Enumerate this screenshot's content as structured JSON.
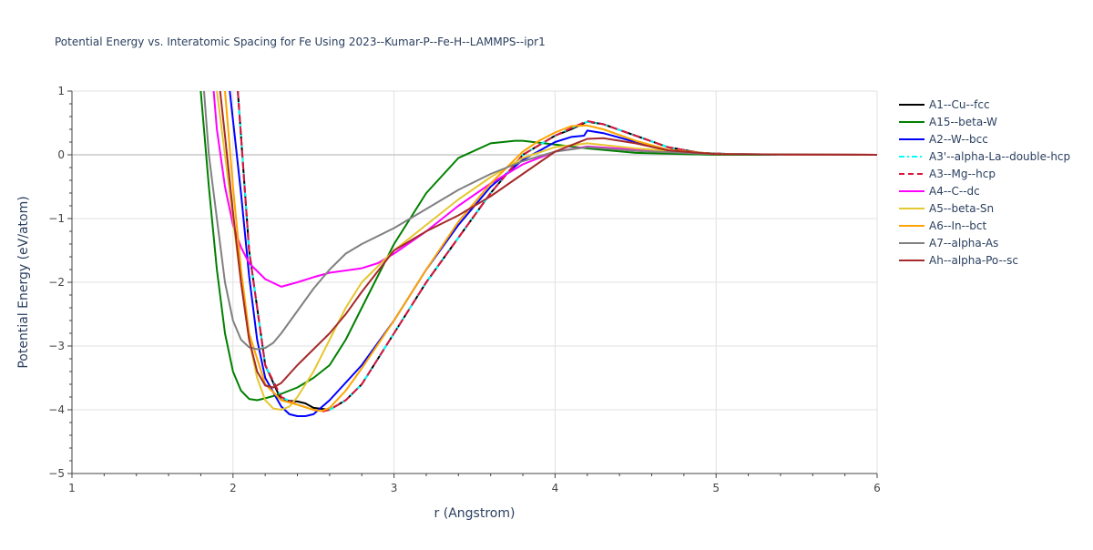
{
  "chart_data": {
    "type": "line",
    "title": "Potential Energy vs. Interatomic Spacing for Fe Using 2023--Kumar-P--Fe-H--LAMMPS--ipr1",
    "xlabel": "r (Angstrom)",
    "ylabel": "Potential Energy (eV/atom)",
    "xlim": [
      1,
      6
    ],
    "ylim": [
      -5,
      1
    ],
    "x_ticks": [
      1,
      2,
      3,
      4,
      5,
      6
    ],
    "x_tick_labels": [
      "1",
      "2",
      "3",
      "4",
      "5",
      "6"
    ],
    "y_ticks": [
      -5,
      -4,
      -3,
      -2,
      -1,
      0,
      1
    ],
    "y_tick_labels": [
      "−5",
      "−4",
      "−3",
      "−2",
      "−1",
      "0",
      "1"
    ],
    "grid": true,
    "legend_position": "right",
    "series": [
      {
        "name": "A1--Cu--fcc",
        "color": "#000000",
        "dash": "solid",
        "x": [
          2.03,
          2.1,
          2.2,
          2.3,
          2.4,
          2.45,
          2.5,
          2.6,
          2.7,
          2.8,
          3.0,
          3.2,
          3.4,
          3.6,
          3.8,
          4.0,
          4.1,
          4.2,
          4.3,
          4.5,
          4.7,
          4.9,
          5.1,
          5.5,
          6.0
        ],
        "y": [
          1.0,
          -1.5,
          -3.3,
          -3.85,
          -3.87,
          -3.9,
          -3.97,
          -4.0,
          -3.85,
          -3.6,
          -2.8,
          -2.0,
          -1.3,
          -0.6,
          0.0,
          0.3,
          0.4,
          0.52,
          0.48,
          0.3,
          0.12,
          0.03,
          0.01,
          0.0,
          0.0
        ]
      },
      {
        "name": "A15--beta-W",
        "color": "#008000",
        "dash": "solid",
        "x": [
          1.8,
          1.85,
          1.9,
          1.95,
          2.0,
          2.05,
          2.1,
          2.15,
          2.2,
          2.3,
          2.4,
          2.5,
          2.6,
          2.7,
          2.8,
          3.0,
          3.2,
          3.4,
          3.6,
          3.75,
          3.8,
          4.0,
          4.2,
          4.5,
          5.0,
          6.0
        ],
        "y": [
          1.0,
          -0.5,
          -1.8,
          -2.8,
          -3.4,
          -3.7,
          -3.83,
          -3.85,
          -3.82,
          -3.75,
          -3.65,
          -3.5,
          -3.3,
          -2.9,
          -2.4,
          -1.4,
          -0.6,
          -0.05,
          0.18,
          0.22,
          0.22,
          0.16,
          0.1,
          0.03,
          0.0,
          0.0
        ]
      },
      {
        "name": "A2--W--bcc",
        "color": "#0000ff",
        "dash": "solid",
        "x": [
          1.98,
          2.05,
          2.1,
          2.15,
          2.2,
          2.3,
          2.35,
          2.4,
          2.45,
          2.5,
          2.6,
          2.8,
          3.0,
          3.2,
          3.4,
          3.6,
          3.8,
          4.0,
          4.1,
          4.18,
          4.2,
          4.3,
          4.5,
          4.7,
          5.0,
          6.0
        ],
        "y": [
          1.0,
          -0.6,
          -1.9,
          -2.9,
          -3.5,
          -3.95,
          -4.07,
          -4.1,
          -4.1,
          -4.07,
          -3.85,
          -3.3,
          -2.6,
          -1.8,
          -1.1,
          -0.5,
          -0.08,
          0.2,
          0.28,
          0.3,
          0.38,
          0.34,
          0.2,
          0.08,
          0.01,
          0.0
        ]
      },
      {
        "name": "A3'--alpha-La--double-hcp",
        "color": "#00ffff",
        "dash": "dashdot",
        "x": [
          2.03,
          2.1,
          2.2,
          2.3,
          2.4,
          2.5,
          2.55,
          2.6,
          2.7,
          2.8,
          3.0,
          3.2,
          3.4,
          3.6,
          3.8,
          4.0,
          4.1,
          4.2,
          4.3,
          4.5,
          4.7,
          4.9,
          5.1,
          5.5,
          6.0
        ],
        "y": [
          1.0,
          -1.5,
          -3.3,
          -3.8,
          -3.92,
          -4.0,
          -4.02,
          -4.0,
          -3.85,
          -3.6,
          -2.8,
          -2.0,
          -1.3,
          -0.6,
          0.0,
          0.3,
          0.42,
          0.52,
          0.48,
          0.3,
          0.12,
          0.03,
          0.01,
          0.0,
          0.0
        ]
      },
      {
        "name": "A3--Mg--hcp",
        "color": "#dc143c",
        "dash": "dash",
        "x": [
          2.03,
          2.1,
          2.2,
          2.3,
          2.4,
          2.5,
          2.55,
          2.6,
          2.7,
          2.8,
          3.0,
          3.2,
          3.4,
          3.6,
          3.8,
          4.0,
          4.1,
          4.2,
          4.3,
          4.5,
          4.7,
          4.9,
          5.1,
          5.5,
          6.0
        ],
        "y": [
          1.0,
          -1.5,
          -3.3,
          -3.8,
          -3.92,
          -4.0,
          -4.03,
          -4.0,
          -3.85,
          -3.6,
          -2.8,
          -2.0,
          -1.3,
          -0.6,
          0.0,
          0.3,
          0.42,
          0.53,
          0.48,
          0.3,
          0.12,
          0.03,
          0.01,
          0.0,
          0.0
        ]
      },
      {
        "name": "A4--C--dc",
        "color": "#ff00ff",
        "dash": "solid",
        "x": [
          1.88,
          1.9,
          1.95,
          2.0,
          2.05,
          2.1,
          2.2,
          2.3,
          2.4,
          2.5,
          2.6,
          2.8,
          2.9,
          3.0,
          3.2,
          3.4,
          3.6,
          3.8,
          4.0,
          4.2,
          4.5,
          5.0,
          6.0
        ],
        "y": [
          1.0,
          0.4,
          -0.5,
          -1.1,
          -1.45,
          -1.7,
          -1.95,
          -2.07,
          -2.0,
          -1.92,
          -1.85,
          -1.78,
          -1.7,
          -1.55,
          -1.2,
          -0.8,
          -0.45,
          -0.15,
          0.05,
          0.13,
          0.08,
          0.01,
          0.0
        ]
      },
      {
        "name": "A5--beta-Sn",
        "color": "#e5c72f",
        "dash": "solid",
        "x": [
          1.9,
          1.95,
          2.0,
          2.05,
          2.1,
          2.15,
          2.2,
          2.25,
          2.3,
          2.35,
          2.4,
          2.5,
          2.6,
          2.7,
          2.8,
          3.0,
          3.2,
          3.4,
          3.6,
          3.8,
          4.0,
          4.2,
          4.5,
          5.0,
          6.0
        ],
        "y": [
          1.0,
          0.0,
          -1.0,
          -2.0,
          -2.9,
          -3.5,
          -3.85,
          -3.98,
          -4.0,
          -3.95,
          -3.8,
          -3.4,
          -2.9,
          -2.4,
          -2.0,
          -1.5,
          -1.1,
          -0.7,
          -0.35,
          -0.05,
          0.12,
          0.18,
          0.1,
          0.01,
          0.0
        ]
      },
      {
        "name": "A6--In--bct",
        "color": "#ffa500",
        "dash": "solid",
        "x": [
          1.95,
          2.0,
          2.05,
          2.1,
          2.2,
          2.3,
          2.4,
          2.5,
          2.55,
          2.6,
          2.7,
          2.8,
          3.0,
          3.2,
          3.4,
          3.6,
          3.8,
          3.9,
          4.0,
          4.1,
          4.2,
          4.3,
          4.5,
          4.7,
          5.0,
          6.0
        ],
        "y": [
          1.0,
          -0.5,
          -1.8,
          -2.8,
          -3.6,
          -3.85,
          -3.92,
          -4.0,
          -4.02,
          -3.97,
          -3.7,
          -3.35,
          -2.6,
          -1.8,
          -1.05,
          -0.45,
          0.05,
          0.22,
          0.35,
          0.45,
          0.46,
          0.4,
          0.22,
          0.08,
          0.01,
          0.0
        ]
      },
      {
        "name": "A7--alpha-As",
        "color": "#808080",
        "dash": "solid",
        "x": [
          1.82,
          1.85,
          1.9,
          1.95,
          2.0,
          2.05,
          2.1,
          2.15,
          2.2,
          2.25,
          2.3,
          2.4,
          2.5,
          2.6,
          2.7,
          2.8,
          3.0,
          3.2,
          3.4,
          3.6,
          3.8,
          4.0,
          4.2,
          4.5,
          5.0,
          6.0
        ],
        "y": [
          1.0,
          0.0,
          -1.0,
          -2.0,
          -2.6,
          -2.9,
          -3.02,
          -3.05,
          -3.03,
          -2.95,
          -2.8,
          -2.45,
          -2.1,
          -1.8,
          -1.55,
          -1.4,
          -1.15,
          -0.85,
          -0.55,
          -0.3,
          -0.1,
          0.05,
          0.12,
          0.06,
          0.01,
          0.0
        ]
      },
      {
        "name": "Ah--alpha-Po--sc",
        "color": "#a52a2a",
        "dash": "solid",
        "x": [
          1.92,
          1.95,
          2.0,
          2.05,
          2.1,
          2.15,
          2.2,
          2.25,
          2.3,
          2.4,
          2.5,
          2.6,
          2.7,
          2.8,
          3.0,
          3.2,
          3.4,
          3.6,
          3.8,
          4.0,
          4.2,
          4.3,
          4.5,
          4.7,
          5.0,
          6.0
        ],
        "y": [
          1.0,
          0.3,
          -0.9,
          -2.0,
          -2.9,
          -3.4,
          -3.62,
          -3.65,
          -3.58,
          -3.3,
          -3.05,
          -2.8,
          -2.5,
          -2.15,
          -1.5,
          -1.2,
          -0.95,
          -0.65,
          -0.3,
          0.05,
          0.25,
          0.26,
          0.18,
          0.07,
          0.01,
          0.0
        ]
      }
    ]
  }
}
